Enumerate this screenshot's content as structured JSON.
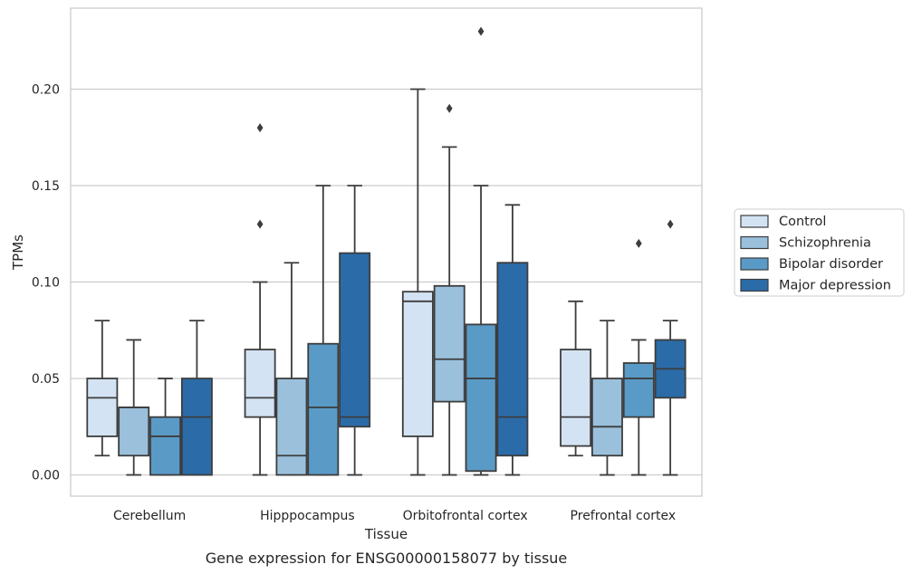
{
  "chart_data": {
    "type": "box",
    "xlabel": "Tissue",
    "ylabel": "TPMs",
    "caption": "Gene expression for ENSG00000158077 by tissue",
    "ylim": [
      -0.011,
      0.242
    ],
    "yticks": [
      "0.00",
      "0.05",
      "0.10",
      "0.15",
      "0.20"
    ],
    "grid": "horizontal",
    "legend_position": "right",
    "categories": [
      "Cerebellum",
      "Hipppocampus",
      "Orbitofrontal cortex",
      "Prefrontal cortex"
    ],
    "series": [
      {
        "name": "Control",
        "color": "#d3e3f3",
        "boxes": [
          {
            "whisker_low": 0.01,
            "q1": 0.02,
            "median": 0.04,
            "q3": 0.05,
            "whisker_high": 0.08,
            "outliers": []
          },
          {
            "whisker_low": 0.0,
            "q1": 0.03,
            "median": 0.04,
            "q3": 0.065,
            "whisker_high": 0.1,
            "outliers": [
              0.13,
              0.18
            ]
          },
          {
            "whisker_low": 0.0,
            "q1": 0.02,
            "median": 0.09,
            "q3": 0.095,
            "whisker_high": 0.2,
            "outliers": []
          },
          {
            "whisker_low": 0.01,
            "q1": 0.015,
            "median": 0.03,
            "q3": 0.065,
            "whisker_high": 0.09,
            "outliers": []
          }
        ]
      },
      {
        "name": "Schizophrenia",
        "color": "#9ac0dc",
        "boxes": [
          {
            "whisker_low": 0.0,
            "q1": 0.01,
            "median": 0.035,
            "q3": 0.035,
            "whisker_high": 0.07,
            "outliers": []
          },
          {
            "whisker_low": 0.0,
            "q1": 0.0,
            "median": 0.01,
            "q3": 0.05,
            "whisker_high": 0.11,
            "outliers": []
          },
          {
            "whisker_low": 0.0,
            "q1": 0.038,
            "median": 0.06,
            "q3": 0.098,
            "whisker_high": 0.17,
            "outliers": [
              0.19
            ]
          },
          {
            "whisker_low": 0.0,
            "q1": 0.01,
            "median": 0.025,
            "q3": 0.05,
            "whisker_high": 0.08,
            "outliers": []
          }
        ]
      },
      {
        "name": "Bipolar disorder",
        "color": "#5a9ac6",
        "boxes": [
          {
            "whisker_low": 0.0,
            "q1": 0.0,
            "median": 0.02,
            "q3": 0.03,
            "whisker_high": 0.05,
            "outliers": []
          },
          {
            "whisker_low": 0.0,
            "q1": 0.0,
            "median": 0.035,
            "q3": 0.068,
            "whisker_high": 0.15,
            "outliers": []
          },
          {
            "whisker_low": 0.0,
            "q1": 0.002,
            "median": 0.05,
            "q3": 0.078,
            "whisker_high": 0.15,
            "outliers": [
              0.23
            ]
          },
          {
            "whisker_low": 0.0,
            "q1": 0.03,
            "median": 0.05,
            "q3": 0.058,
            "whisker_high": 0.07,
            "outliers": [
              0.12
            ]
          }
        ]
      },
      {
        "name": "Major depression",
        "color": "#2b6ba8",
        "boxes": [
          {
            "whisker_low": 0.0,
            "q1": 0.0,
            "median": 0.03,
            "q3": 0.05,
            "whisker_high": 0.08,
            "outliers": []
          },
          {
            "whisker_low": 0.0,
            "q1": 0.025,
            "median": 0.03,
            "q3": 0.115,
            "whisker_high": 0.15,
            "outliers": []
          },
          {
            "whisker_low": 0.0,
            "q1": 0.01,
            "median": 0.03,
            "q3": 0.11,
            "whisker_high": 0.14,
            "outliers": []
          },
          {
            "whisker_low": 0.0,
            "q1": 0.04,
            "median": 0.055,
            "q3": 0.07,
            "whisker_high": 0.08,
            "outliers": [
              0.13
            ]
          }
        ]
      }
    ]
  }
}
